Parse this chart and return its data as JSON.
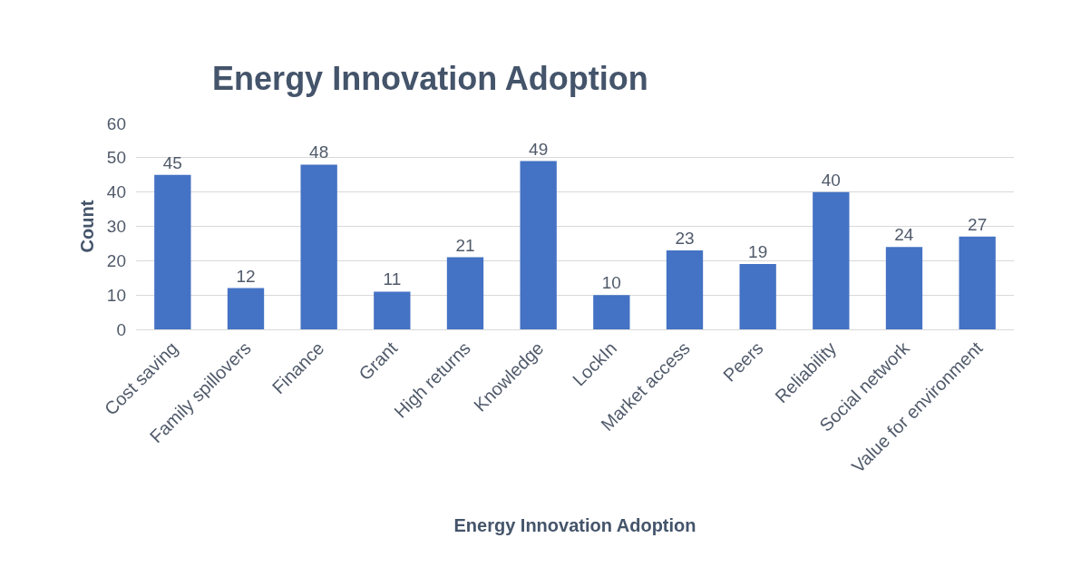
{
  "chart_data": {
    "type": "bar",
    "title": "Energy Innovation Adoption",
    "xlabel": "Energy Innovation Adoption",
    "ylabel": "Count",
    "categories": [
      "Cost saving",
      "Family spillovers",
      "Finance",
      "Grant",
      "High returns",
      "Knowledge",
      "LockIn",
      "Market access",
      "Peers",
      "Reliability",
      "Social network",
      "Value for environment"
    ],
    "values": [
      45,
      12,
      48,
      11,
      21,
      49,
      10,
      23,
      19,
      40,
      24,
      27
    ],
    "color": "#4472c4",
    "ylim": [
      0,
      60
    ],
    "yticks": [
      0,
      10,
      20,
      30,
      40,
      50,
      60
    ],
    "grid": "y",
    "data_labels": true
  }
}
